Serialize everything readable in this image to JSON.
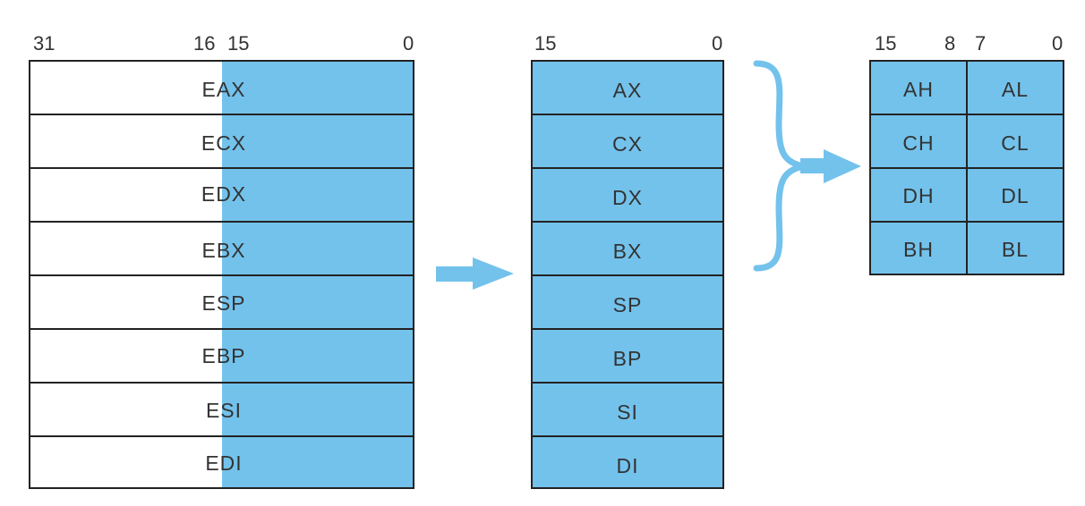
{
  "colors": {
    "register_fill": "#73c2ec",
    "border": "#222222",
    "text": "#333333",
    "arrow": "#73c2ec"
  },
  "block32": {
    "bit_labels": {
      "b31": "31",
      "b16": "16",
      "b15": "15",
      "b0": "0"
    },
    "registers": [
      "EAX",
      "ECX",
      "EDX",
      "EBX",
      "ESP",
      "EBP",
      "ESI",
      "EDI"
    ]
  },
  "block16": {
    "bit_labels": {
      "b15": "15",
      "b0": "0"
    },
    "registers": [
      "AX",
      "CX",
      "DX",
      "BX",
      "SP",
      "BP",
      "SI",
      "DI"
    ]
  },
  "block8": {
    "bit_labels": {
      "b15": "15",
      "b8": "8",
      "b7": "7",
      "b0": "0"
    },
    "rows": [
      {
        "high": "AH",
        "low": "AL"
      },
      {
        "high": "CH",
        "low": "CL"
      },
      {
        "high": "DH",
        "low": "DL"
      },
      {
        "high": "BH",
        "low": "BL"
      }
    ]
  },
  "icons": {
    "arrow_32_to_16": "right-arrow-icon",
    "brace": "right-brace-icon",
    "arrow_16_to_8": "right-arrow-icon"
  }
}
